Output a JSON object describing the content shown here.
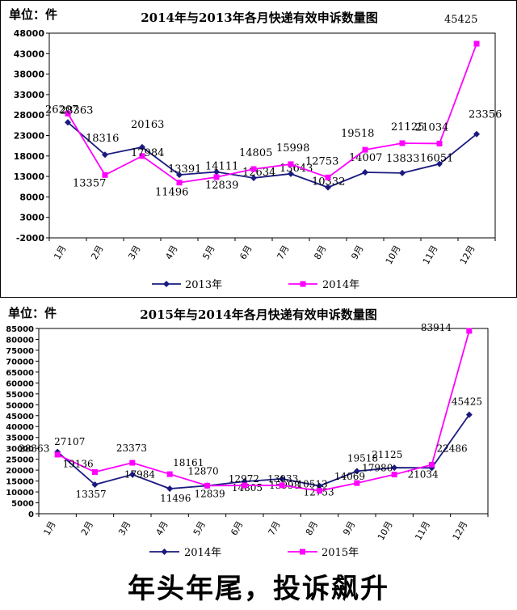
{
  "chart_data": [
    {
      "type": "line",
      "unit_label": "单位：件",
      "title": "2014年与2013年各月快递有效申诉数量图",
      "categories": [
        "1月",
        "2月",
        "3月",
        "4月",
        "5月",
        "6月",
        "7月",
        "8月",
        "9月",
        "10月",
        "11月",
        "12月"
      ],
      "ylim": [
        -2000,
        48000
      ],
      "yticks": [
        "48000",
        "43000",
        "38000",
        "33000",
        "28000",
        "23000",
        "18000",
        "13000",
        "8000",
        "3000",
        "-2000"
      ],
      "grid": false,
      "legend_position": "bottom",
      "series": [
        {
          "name": "2013年",
          "color": "#1a1a80",
          "marker": "diamond",
          "values": [
            26207,
            18316,
            20163,
            13391,
            14111,
            12634,
            13643,
            10332,
            14007,
            13833,
            16051,
            23356
          ],
          "labels": [
            "26207",
            "18316",
            "20163",
            "13391",
            "14111",
            "12634",
            "13643",
            "10332",
            "14007",
            "13833",
            "16051",
            "23356"
          ]
        },
        {
          "name": "2014年",
          "color": "#ff00ff",
          "marker": "square",
          "values": [
            28363,
            13357,
            17984,
            11496,
            12839,
            14805,
            15998,
            12753,
            19518,
            21125,
            21034,
            45425
          ],
          "labels": [
            "28363",
            "13357",
            "17984",
            "11496",
            "12839",
            "14805",
            "15998",
            "12753",
            "19518",
            "21125",
            "21034",
            "45425"
          ]
        }
      ]
    },
    {
      "type": "line",
      "unit_label": "单位：件",
      "title": "2015年与2014年各月快递有效申诉数量图",
      "categories": [
        "1月",
        "2月",
        "3月",
        "4月",
        "5月",
        "6月",
        "7月",
        "8月",
        "9月",
        "10月",
        "11月",
        "12月"
      ],
      "ylim": [
        0,
        85000
      ],
      "yticks": [
        "85000",
        "80000",
        "75000",
        "70000",
        "65000",
        "60000",
        "55000",
        "50000",
        "45000",
        "40000",
        "35000",
        "30000",
        "25000",
        "20000",
        "15000",
        "10000",
        "5000",
        "0"
      ],
      "grid": false,
      "legend_position": "bottom",
      "series": [
        {
          "name": "2014年",
          "color": "#1a1a80",
          "marker": "diamond",
          "values": [
            28363,
            13357,
            17984,
            11496,
            12839,
            14805,
            15998,
            12753,
            19518,
            21125,
            21034,
            45425
          ],
          "labels": [
            "28363",
            "13357",
            "17984",
            "11496",
            "12839",
            "14805",
            "15998",
            "12753",
            "19518",
            "21125",
            "21034",
            "45425"
          ]
        },
        {
          "name": "2015年",
          "color": "#ff00ff",
          "marker": "square",
          "values": [
            27107,
            19136,
            23373,
            18161,
            12870,
            12972,
            13033,
            10513,
            14069,
            17980,
            22486,
            83914
          ],
          "labels": [
            "27107",
            "19136",
            "23373",
            "18161",
            "12870",
            "12972",
            "13033",
            "10513",
            "14069",
            "17980",
            "22486",
            "83914"
          ]
        }
      ]
    }
  ],
  "caption": "年头年尾，投诉飙升"
}
